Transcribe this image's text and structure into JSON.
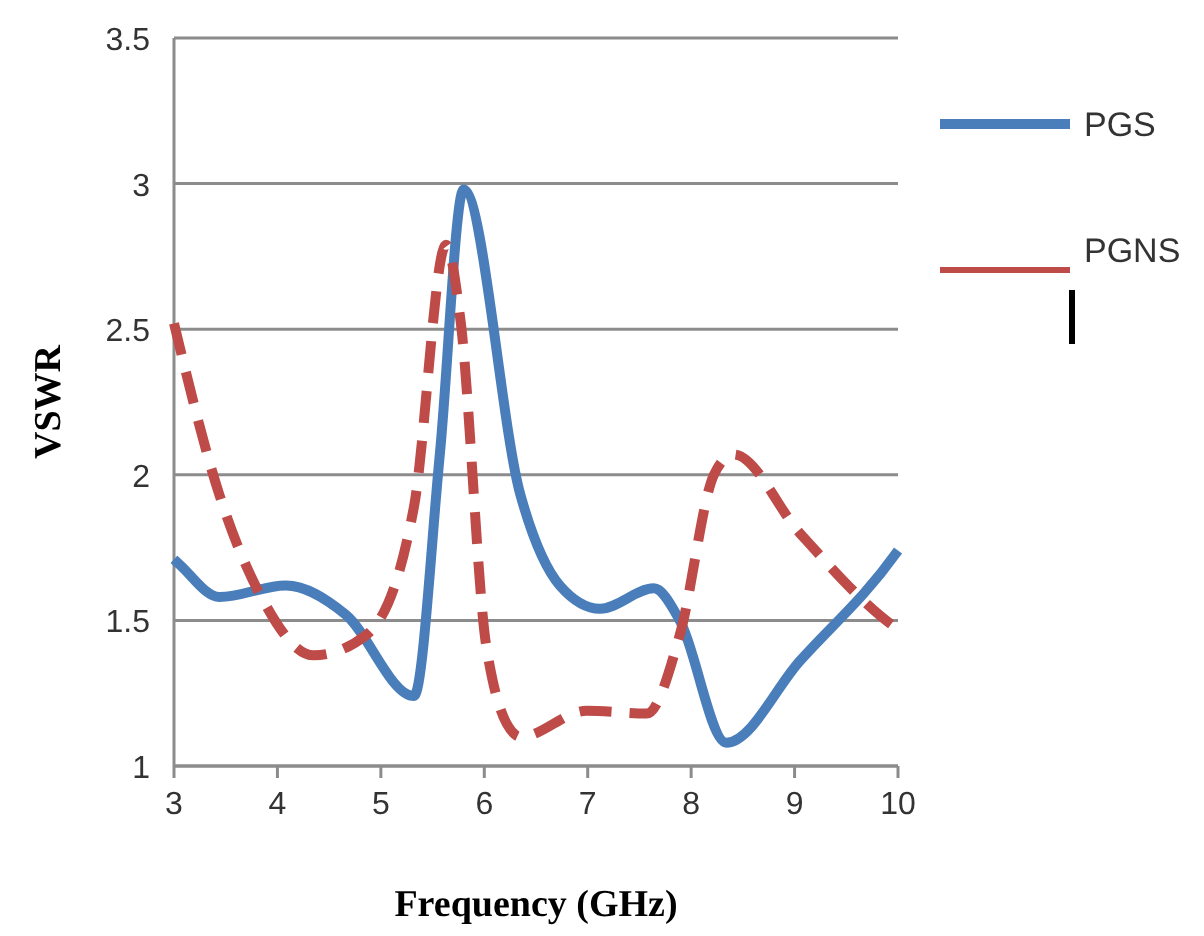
{
  "chart_data": {
    "type": "line",
    "xlabel": "Frequency (GHz)",
    "ylabel": "VSWR",
    "xlim": [
      3,
      10
    ],
    "ylim": [
      1,
      3.5
    ],
    "xticks": [
      3,
      4,
      5,
      6,
      7,
      8,
      9,
      10
    ],
    "yticks": [
      1,
      1.5,
      2,
      2.5,
      3,
      3.5
    ],
    "grid": "y",
    "legend": "right",
    "series": [
      {
        "name": "PGS",
        "color": "#4a7ebb",
        "line_style": "solid",
        "x": [
          3,
          3.06,
          3.44,
          4.08,
          4.66,
          5.32,
          5.57,
          5.8,
          6.35,
          6.73,
          7.12,
          7.64,
          7.89,
          8.34,
          9.05,
          9.98,
          10
        ],
        "values": [
          1.71,
          1.69,
          1.58,
          1.62,
          1.52,
          1.24,
          2.07,
          2.98,
          1.93,
          1.62,
          1.54,
          1.61,
          1.5,
          1.08,
          1.36,
          1.73,
          1.74
        ]
      },
      {
        "name": "PGNS",
        "color": "#be4b48",
        "line_style": "dashed",
        "x": [
          3,
          3.44,
          3.83,
          4.35,
          4.86,
          5.32,
          5.63,
          5.77,
          6.02,
          6.29,
          6.35,
          6.99,
          7.57,
          7.89,
          8.22,
          8.41,
          9.05,
          9.96,
          10
        ],
        "values": [
          2.52,
          1.93,
          1.59,
          1.38,
          1.45,
          1.89,
          2.79,
          2.53,
          1.41,
          1.11,
          1.1,
          1.19,
          1.18,
          1.45,
          2.0,
          2.07,
          1.8,
          1.48,
          1.47
        ]
      }
    ]
  }
}
